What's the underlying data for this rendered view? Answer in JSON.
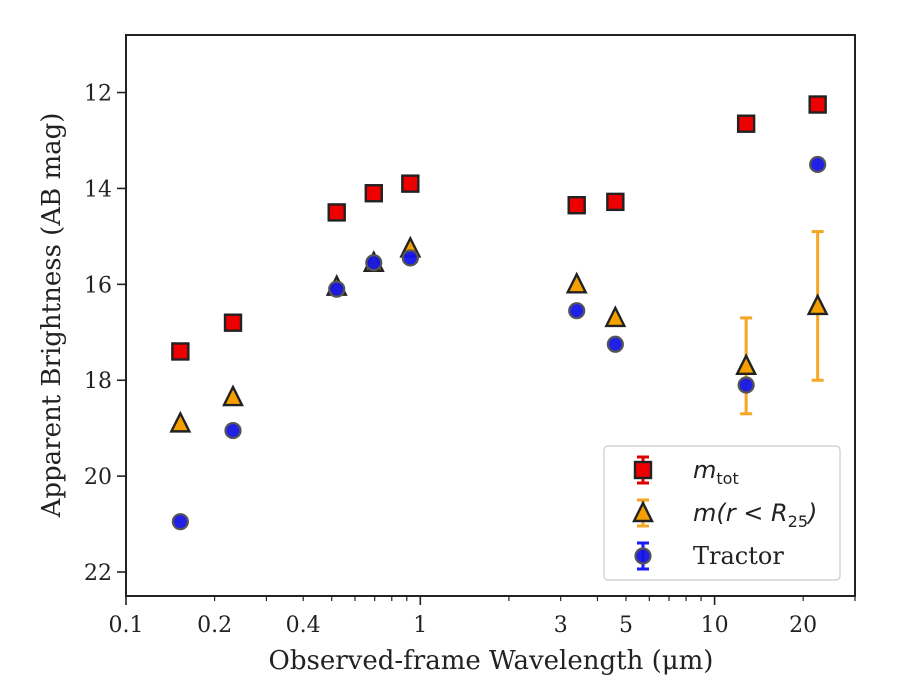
{
  "chart_data": {
    "type": "scatter",
    "x_scale": "log",
    "y_inverted": true,
    "xlabel": "Observed-frame Wavelength (μm)",
    "ylabel": "Apparent Brightness (AB mag)",
    "xlim": [
      0.1,
      30
    ],
    "ylim": [
      22.5,
      10.8
    ],
    "x_ticks": [
      {
        "value": 0.1,
        "label": "0.1"
      },
      {
        "value": 0.2,
        "label": "0.2"
      },
      {
        "value": 0.4,
        "label": "0.4"
      },
      {
        "value": 1,
        "label": "1"
      },
      {
        "value": 3,
        "label": "3"
      },
      {
        "value": 5,
        "label": "5"
      },
      {
        "value": 10,
        "label": "10"
      },
      {
        "value": 20,
        "label": "20"
      }
    ],
    "y_ticks": [
      {
        "value": 12,
        "label": "12"
      },
      {
        "value": 14,
        "label": "14"
      },
      {
        "value": 16,
        "label": "16"
      },
      {
        "value": 18,
        "label": "18"
      },
      {
        "value": 20,
        "label": "20"
      },
      {
        "value": 22,
        "label": "22"
      }
    ],
    "grid": false,
    "legend_position": "lower-right",
    "series": [
      {
        "name": "m_tot",
        "legend_label": "m",
        "legend_sub": "tot",
        "marker": "square",
        "color": "#ee0000",
        "edge": "#222222",
        "errcolor": "#dd0000",
        "points": [
          {
            "x": 0.153,
            "y": 17.4
          },
          {
            "x": 0.231,
            "y": 16.8
          },
          {
            "x": 0.52,
            "y": 14.5
          },
          {
            "x": 0.695,
            "y": 14.1
          },
          {
            "x": 0.925,
            "y": 13.9
          },
          {
            "x": 3.4,
            "y": 14.35
          },
          {
            "x": 4.6,
            "y": 14.28
          },
          {
            "x": 12.8,
            "y": 12.65
          },
          {
            "x": 22.4,
            "y": 12.25
          }
        ]
      },
      {
        "name": "m(r < R_25)",
        "legend_label": "m(r < R",
        "legend_sub": "25",
        "legend_tail": ")",
        "marker": "triangle",
        "color": "#f5a000",
        "edge": "#222222",
        "errcolor": "#f5a623",
        "points": [
          {
            "x": 0.153,
            "y": 18.9
          },
          {
            "x": 0.231,
            "y": 18.35
          },
          {
            "x": 0.52,
            "y": 16.05
          },
          {
            "x": 0.695,
            "y": 15.55
          },
          {
            "x": 0.925,
            "y": 15.25
          },
          {
            "x": 3.4,
            "y": 16.0
          },
          {
            "x": 4.6,
            "y": 16.7
          },
          {
            "x": 12.8,
            "y": 17.7,
            "err": [
              1.0,
              1.0
            ]
          },
          {
            "x": 22.4,
            "y": 16.45,
            "err": [
              1.55,
              1.55
            ]
          }
        ]
      },
      {
        "name": "Tractor",
        "legend_label": "Tractor",
        "marker": "circle",
        "color": "#1414e6",
        "edge": "#555555",
        "errcolor": "#1a1aff",
        "points": [
          {
            "x": 0.153,
            "y": 20.95
          },
          {
            "x": 0.231,
            "y": 19.05
          },
          {
            "x": 0.52,
            "y": 16.1
          },
          {
            "x": 0.695,
            "y": 15.55
          },
          {
            "x": 0.925,
            "y": 15.45
          },
          {
            "x": 3.4,
            "y": 16.55
          },
          {
            "x": 4.6,
            "y": 17.25
          },
          {
            "x": 12.8,
            "y": 18.1
          },
          {
            "x": 22.4,
            "y": 13.5
          }
        ]
      }
    ]
  }
}
